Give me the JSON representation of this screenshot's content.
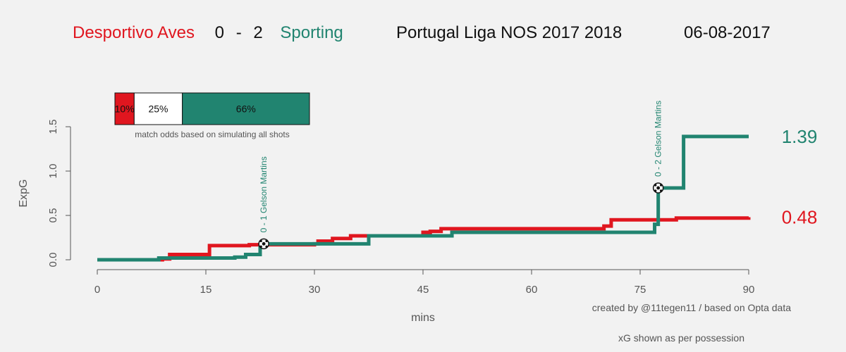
{
  "header": {
    "home_team": "Desportivo Aves",
    "home_goals": "0",
    "separator": "-",
    "away_goals": "2",
    "away_team": "Sporting",
    "competition": "Portugal Liga NOS 2017 2018",
    "date": "06-08-2017"
  },
  "colors": {
    "home": "#e0161f",
    "away": "#218470"
  },
  "odds": {
    "home_win": "10%",
    "draw": "25%",
    "away_win": "66%",
    "values": [
      10,
      25,
      66
    ],
    "caption": "match odds based on simulating all shots"
  },
  "credits": {
    "creator": "created by @11tegen11   /   based on Opta data",
    "xg_note": "xG shown as per possession"
  },
  "chart_data": {
    "type": "line",
    "xlabel": "mins",
    "ylabel": "ExpG",
    "xlim": [
      0,
      90
    ],
    "ylim": [
      0,
      1.5
    ],
    "x_ticks": [
      "0",
      "15",
      "30",
      "45",
      "60",
      "75",
      "90"
    ],
    "y_ticks": [
      "0.0",
      "0.5",
      "1.0",
      "1.5"
    ],
    "series": [
      {
        "name": "Desportivo Aves",
        "color": "#e0161f",
        "final_label": "0.48",
        "steps": [
          [
            0,
            0
          ],
          [
            9,
            0.01
          ],
          [
            10,
            0.06
          ],
          [
            15.5,
            0.16
          ],
          [
            21,
            0.17
          ],
          [
            30,
            0.18
          ],
          [
            30.5,
            0.21
          ],
          [
            32.5,
            0.24
          ],
          [
            35,
            0.27
          ],
          [
            45,
            0.31
          ],
          [
            46,
            0.32
          ],
          [
            47.5,
            0.35
          ],
          [
            70,
            0.38
          ],
          [
            71,
            0.45
          ],
          [
            80,
            0.47
          ],
          [
            90,
            0.48
          ]
        ]
      },
      {
        "name": "Sporting",
        "color": "#218470",
        "final_label": "1.39",
        "steps": [
          [
            0,
            0
          ],
          [
            8.5,
            0.02
          ],
          [
            19,
            0.03
          ],
          [
            20.5,
            0.06
          ],
          [
            22.5,
            0.17
          ],
          [
            23,
            0.18
          ],
          [
            37.5,
            0.27
          ],
          [
            49,
            0.31
          ],
          [
            77,
            0.4
          ],
          [
            77.5,
            0.81
          ],
          [
            81,
            1.39
          ],
          [
            90,
            1.39
          ]
        ]
      }
    ],
    "goals": [
      {
        "minute": 23,
        "xg": 0.18,
        "label": "0 - 1 Gelson Martins"
      },
      {
        "minute": 77.5,
        "xg": 0.81,
        "label": "0 - 2 Gelson Martins"
      }
    ]
  }
}
